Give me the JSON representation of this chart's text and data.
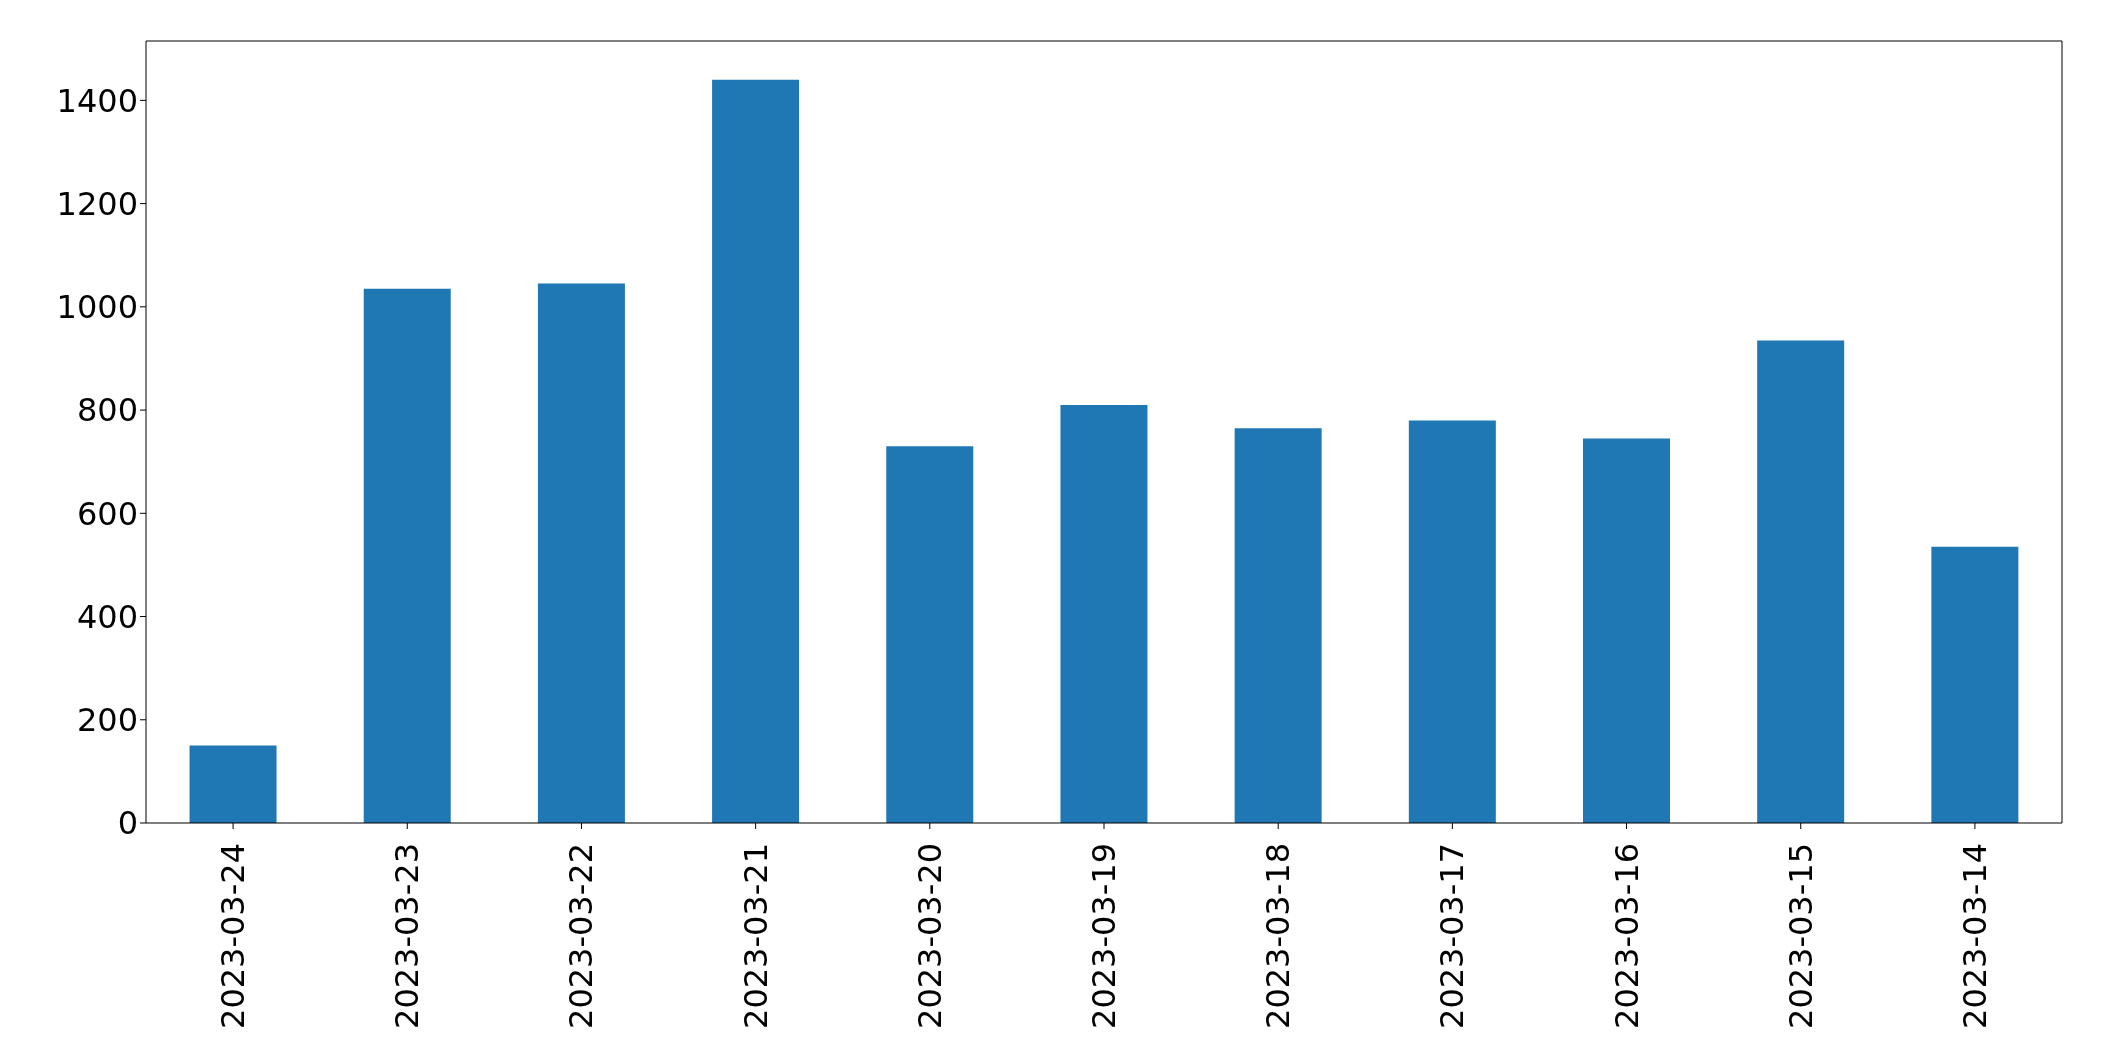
{
  "chart_data": {
    "type": "bar",
    "categories": [
      "2023-03-24",
      "2023-03-23",
      "2023-03-22",
      "2023-03-21",
      "2023-03-20",
      "2023-03-19",
      "2023-03-18",
      "2023-03-17",
      "2023-03-16",
      "2023-03-15",
      "2023-03-14"
    ],
    "values": [
      150,
      1035,
      1045,
      1440,
      730,
      810,
      765,
      780,
      745,
      935,
      535
    ],
    "color": "#1f77b4",
    "ylim": [
      0,
      1515
    ],
    "yticks": [
      0,
      200,
      400,
      600,
      800,
      1000,
      1200,
      1400
    ],
    "grid": false
  }
}
